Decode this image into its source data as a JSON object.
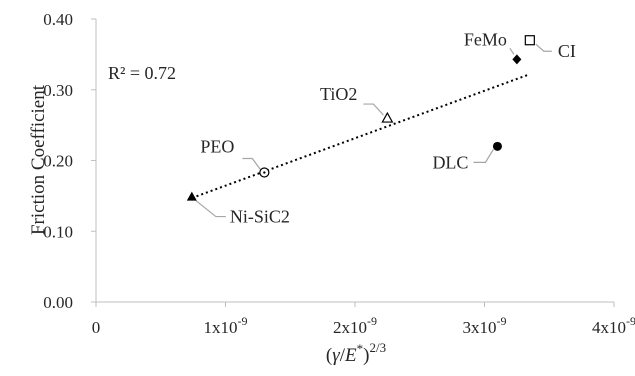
{
  "chart_data": {
    "type": "scatter",
    "ylabel": "Friction Coefficient",
    "xlabel_math": {
      "left": "(",
      "gamma": "γ",
      "slash": "/",
      "e": "E",
      "star": "*",
      "right": ")",
      "exp": "2/3"
    },
    "xlim": [
      0,
      4e-09
    ],
    "ylim": [
      0,
      0.4
    ],
    "x_ticks": [
      0,
      1e-09,
      2e-09,
      3e-09,
      4e-09
    ],
    "x_tick_labels": [
      {
        "base": "0",
        "exp": ""
      },
      {
        "base": "1x10",
        "exp": "-9"
      },
      {
        "base": "2x10",
        "exp": "-9"
      },
      {
        "base": "3x10",
        "exp": "-9"
      },
      {
        "base": "4x10",
        "exp": "-9"
      }
    ],
    "y_ticks": [
      0,
      0.1,
      0.2,
      0.3,
      0.4
    ],
    "y_tick_labels": [
      "0.00",
      "0.10",
      "0.20",
      "0.30",
      "0.40"
    ],
    "annotation": {
      "text": "R² = 0.72"
    },
    "grid": false,
    "points": [
      {
        "label": "Ni-SiC2",
        "x": 7.4e-10,
        "y": 0.149,
        "marker": "triangle-filled"
      },
      {
        "label": "PEO",
        "x": 1.3e-09,
        "y": 0.183,
        "marker": "circle-open-dot"
      },
      {
        "label": "TiO2",
        "x": 2.25e-09,
        "y": 0.26,
        "marker": "triangle-open"
      },
      {
        "label": "DLC",
        "x": 3.1e-09,
        "y": 0.22,
        "marker": "circle-filled"
      },
      {
        "label": "FeMo",
        "x": 3.25e-09,
        "y": 0.343,
        "marker": "diamond-filled"
      },
      {
        "label": "CI",
        "x": 3.35e-09,
        "y": 0.37,
        "marker": "square-open"
      }
    ],
    "trendline": {
      "style": "dotted",
      "x": [
        7.4e-10,
        3.35e-09
      ],
      "y": [
        0.147,
        0.322
      ]
    }
  }
}
